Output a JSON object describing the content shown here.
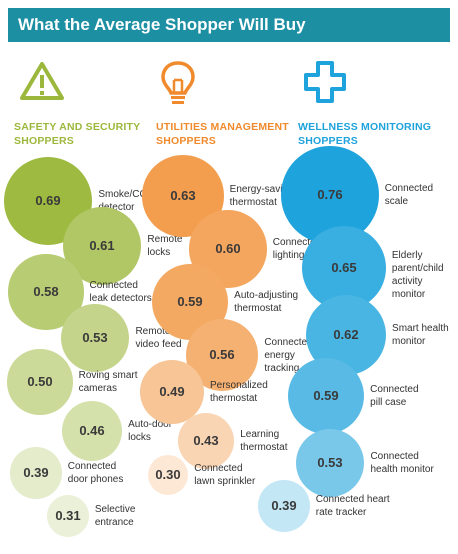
{
  "header": {
    "title": "What the Average Shopper Will Buy"
  },
  "chart_data": {
    "type": "bubble",
    "title": "What the Average Shopper Will Buy",
    "groups": [
      {
        "name": "SAFETY AND SECURITY SHOPPERS",
        "icon": "warning-icon",
        "color": "#9cb83c",
        "items": [
          {
            "label": "Smoke/CO detector",
            "value": 0.69
          },
          {
            "label": "Remote locks",
            "value": 0.61
          },
          {
            "label": "Connected leak detectors",
            "value": 0.58
          },
          {
            "label": "Remote video feed",
            "value": 0.53
          },
          {
            "label": "Roving smart cameras",
            "value": 0.5
          },
          {
            "label": "Auto-door locks",
            "value": 0.46
          },
          {
            "label": "Connected door phones",
            "value": 0.39
          },
          {
            "label": "Selective entrance",
            "value": 0.31
          }
        ]
      },
      {
        "name": "UTILITIES MANAGEMENT SHOPPERS",
        "icon": "lightbulb-icon",
        "color": "#f08a2c",
        "items": [
          {
            "label": "Energy-saving thermostat",
            "value": 0.63
          },
          {
            "label": "Connected lighting",
            "value": 0.6
          },
          {
            "label": "Auto-adjusting thermostat",
            "value": 0.59
          },
          {
            "label": "Connected energy tracking",
            "value": 0.56
          },
          {
            "label": "Personalized thermostat",
            "value": 0.49
          },
          {
            "label": "Learning thermostat",
            "value": 0.43
          },
          {
            "label": "Connected lawn sprinkler",
            "value": 0.3
          }
        ]
      },
      {
        "name": "WELLNESS MONITORING SHOPPERS",
        "icon": "medical-cross-icon",
        "color": "#1ea3dc",
        "items": [
          {
            "label": "Connected scale",
            "value": 0.76
          },
          {
            "label": "Elderly parent/child activity monitor",
            "value": 0.65
          },
          {
            "label": "Smart health monitor",
            "value": 0.62
          },
          {
            "label": "Connected pill case",
            "value": 0.59
          },
          {
            "label": "Connected health monitor",
            "value": 0.53
          },
          {
            "label": "Connected heart rate tracker",
            "value": 0.39
          }
        ]
      }
    ]
  }
}
